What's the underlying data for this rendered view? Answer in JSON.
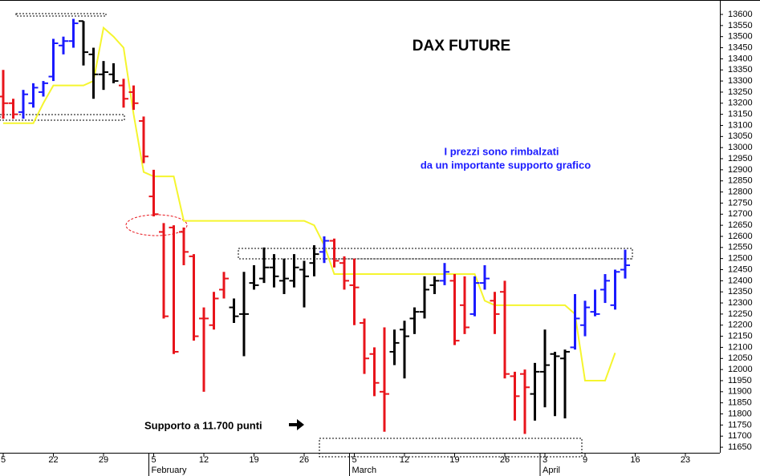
{
  "chart_data": {
    "type": "ohlc",
    "title": "DAX FUTURE",
    "annotations": [
      "I prezzi sono rimbalzati",
      "da un importante supporto grafico",
      "Supporto a 11.700 punti"
    ],
    "categories": [
      "5",
      null,
      null,
      null,
      null,
      "22",
      null,
      null,
      null,
      null,
      "29",
      null,
      null,
      null,
      null,
      "5",
      null,
      null,
      null,
      null,
      "12",
      null,
      null,
      null,
      null,
      "19",
      null,
      null,
      null,
      null,
      "26",
      null,
      null,
      null,
      null,
      "5",
      null,
      null,
      null,
      null,
      "12",
      null,
      null,
      null,
      null,
      "19",
      null,
      null,
      null,
      null,
      "26",
      null,
      null,
      null,
      "3",
      null,
      null,
      null,
      "9",
      null,
      null,
      null,
      null,
      "16",
      null,
      null,
      null,
      null,
      "23",
      null,
      null,
      null,
      null
    ],
    "months": [
      null,
      null,
      null,
      null,
      null,
      null,
      null,
      null,
      null,
      null,
      null,
      null,
      null,
      null,
      null,
      "February",
      null,
      null,
      null,
      null,
      null,
      null,
      null,
      null,
      null,
      null,
      null,
      null,
      null,
      null,
      null,
      null,
      null,
      null,
      null,
      "March",
      null,
      null,
      null,
      null,
      null,
      null,
      null,
      null,
      null,
      null,
      null,
      null,
      null,
      null,
      null,
      null,
      null,
      null,
      "April",
      null,
      null,
      null,
      null,
      null,
      null,
      null,
      null,
      null,
      null,
      null,
      null,
      null,
      null,
      null,
      null,
      null,
      null
    ],
    "open": [
      13230,
      13200,
      13160,
      13200,
      13250,
      13320,
      13460,
      13480,
      13570,
      13420,
      13330,
      13330,
      13280,
      13250,
      13120,
      12780,
      12620,
      12640,
      12620,
      12510,
      12230,
      12200,
      12360,
      12280,
      12250,
      12390,
      12410,
      12460,
      12400,
      12400,
      12450,
      12480,
      12530,
      12580,
      12480,
      12380,
      12210,
      12070,
      11900,
      12080,
      12180,
      12230,
      12260,
      12380,
      12400,
      12400,
      12290,
      12250,
      12390,
      12310,
      12350,
      11970,
      11980,
      11890,
      11990,
      12070,
      12050,
      12100,
      12200,
      12260,
      12360,
      12290,
      12450,
      null,
      null,
      null,
      null,
      null,
      null,
      null,
      null,
      null,
      null
    ],
    "high": [
      13350,
      13220,
      13260,
      13290,
      13300,
      13490,
      13500,
      13580,
      13570,
      13450,
      13390,
      13380,
      13310,
      13280,
      13140,
      12900,
      12660,
      12650,
      12640,
      12520,
      12280,
      12350,
      12440,
      12320,
      12440,
      12470,
      12550,
      12520,
      12500,
      12520,
      12490,
      12560,
      12600,
      12590,
      12510,
      12500,
      12230,
      12100,
      12190,
      12180,
      12220,
      12280,
      12420,
      12420,
      12480,
      12430,
      12420,
      12420,
      12470,
      12350,
      12400,
      11990,
      12000,
      12030,
      12180,
      12080,
      12090,
      12340,
      12310,
      12360,
      12430,
      12450,
      12540,
      null,
      null,
      null,
      null,
      null,
      null,
      null,
      null,
      null,
      null
    ],
    "low": [
      13130,
      13130,
      13130,
      13180,
      13230,
      13300,
      13420,
      13450,
      13370,
      13220,
      13260,
      13290,
      13180,
      13170,
      12930,
      12690,
      12230,
      12070,
      12470,
      12130,
      11900,
      12180,
      12320,
      12210,
      12060,
      12360,
      12390,
      12370,
      12340,
      12370,
      12280,
      12420,
      12480,
      12460,
      12360,
      12200,
      11980,
      11880,
      11720,
      12020,
      11960,
      12160,
      12230,
      12340,
      12380,
      12110,
      12160,
      12240,
      12360,
      12160,
      11960,
      11770,
      11710,
      11770,
      11830,
      11790,
      11780,
      12090,
      12150,
      12240,
      12300,
      12270,
      12410,
      null,
      null,
      null,
      null,
      null,
      null,
      null,
      null,
      null,
      null
    ],
    "close": [
      13200,
      13150,
      13240,
      13270,
      13290,
      13470,
      13480,
      13560,
      13430,
      13330,
      13340,
      13300,
      13220,
      13200,
      12960,
      12700,
      12240,
      12080,
      12530,
      12150,
      12230,
      12320,
      12410,
      12240,
      12250,
      12380,
      12460,
      12420,
      12410,
      12460,
      12420,
      12520,
      12580,
      12490,
      12400,
      12370,
      12050,
      11940,
      11890,
      12120,
      12150,
      12260,
      12360,
      12400,
      12440,
      12130,
      12190,
      12390,
      12410,
      12250,
      11980,
      11880,
      11920,
      11990,
      12020,
      12060,
      12080,
      12230,
      12280,
      12250,
      12400,
      12440,
      12470,
      null,
      null,
      null,
      null,
      null,
      null,
      null,
      null,
      null,
      null
    ],
    "bar_colors": [
      "#e8141b",
      "#e8141b",
      "#1a1aff",
      "#1a1aff",
      "#1a1aff",
      "#1a1aff",
      "#1a1aff",
      "#1a1aff",
      "#000000",
      "#000000",
      "#000000",
      "#000000",
      "#e8141b",
      "#e8141b",
      "#e8141b",
      "#e8141b",
      "#e8141b",
      "#e8141b",
      "#e8141b",
      "#e8141b",
      "#e8141b",
      "#e8141b",
      "#e8141b",
      "#000000",
      "#000000",
      "#000000",
      "#000000",
      "#000000",
      "#000000",
      "#000000",
      "#000000",
      "#000000",
      "#1a1aff",
      "#e8141b",
      "#e8141b",
      "#e8141b",
      "#e8141b",
      "#e8141b",
      "#e8141b",
      "#000000",
      "#000000",
      "#000000",
      "#000000",
      "#000000",
      "#1a1aff",
      "#e8141b",
      "#e8141b",
      "#1a1aff",
      "#1a1aff",
      "#e8141b",
      "#e8141b",
      "#e8141b",
      "#e8141b",
      "#000000",
      "#000000",
      "#000000",
      "#000000",
      "#1a1aff",
      "#1a1aff",
      "#1a1aff",
      "#1a1aff",
      "#1a1aff",
      "#1a1aff",
      null,
      null,
      null,
      null,
      null,
      null,
      null,
      null,
      null,
      null
    ],
    "line": {
      "color": "#f5f52e",
      "values": [
        13110,
        13110,
        13110,
        13110,
        13200,
        13280,
        13280,
        13280,
        13280,
        13300,
        13540,
        13500,
        13450,
        13150,
        12890,
        12870,
        12870,
        12870,
        12670,
        12670,
        12670,
        12670,
        12670,
        12670,
        12670,
        12670,
        12670,
        12670,
        12670,
        12670,
        12670,
        12650,
        12560,
        12430,
        12430,
        12430,
        12430,
        12430,
        12430,
        12430,
        12430,
        12430,
        12430,
        12430,
        12430,
        12430,
        12430,
        12430,
        12310,
        12290,
        12290,
        12290,
        12290,
        12290,
        12290,
        12290,
        12290,
        12250,
        11950,
        11950,
        11950,
        12075,
        null,
        null,
        null,
        null,
        null,
        null,
        null,
        null,
        null,
        null,
        null
      ]
    },
    "ylim": [
      11625,
      13665
    ],
    "yticks": [
      11650,
      11700,
      11750,
      11800,
      11850,
      11900,
      11950,
      12000,
      12050,
      12100,
      12150,
      12200,
      12250,
      12300,
      12350,
      12400,
      12450,
      12500,
      12550,
      12600,
      12650,
      12700,
      12750,
      12800,
      12850,
      12900,
      12950,
      13000,
      13050,
      13100,
      13150,
      13200,
      13250,
      13300,
      13350,
      13400,
      13450,
      13500,
      13550,
      13600
    ],
    "y_axis_side": "right"
  }
}
